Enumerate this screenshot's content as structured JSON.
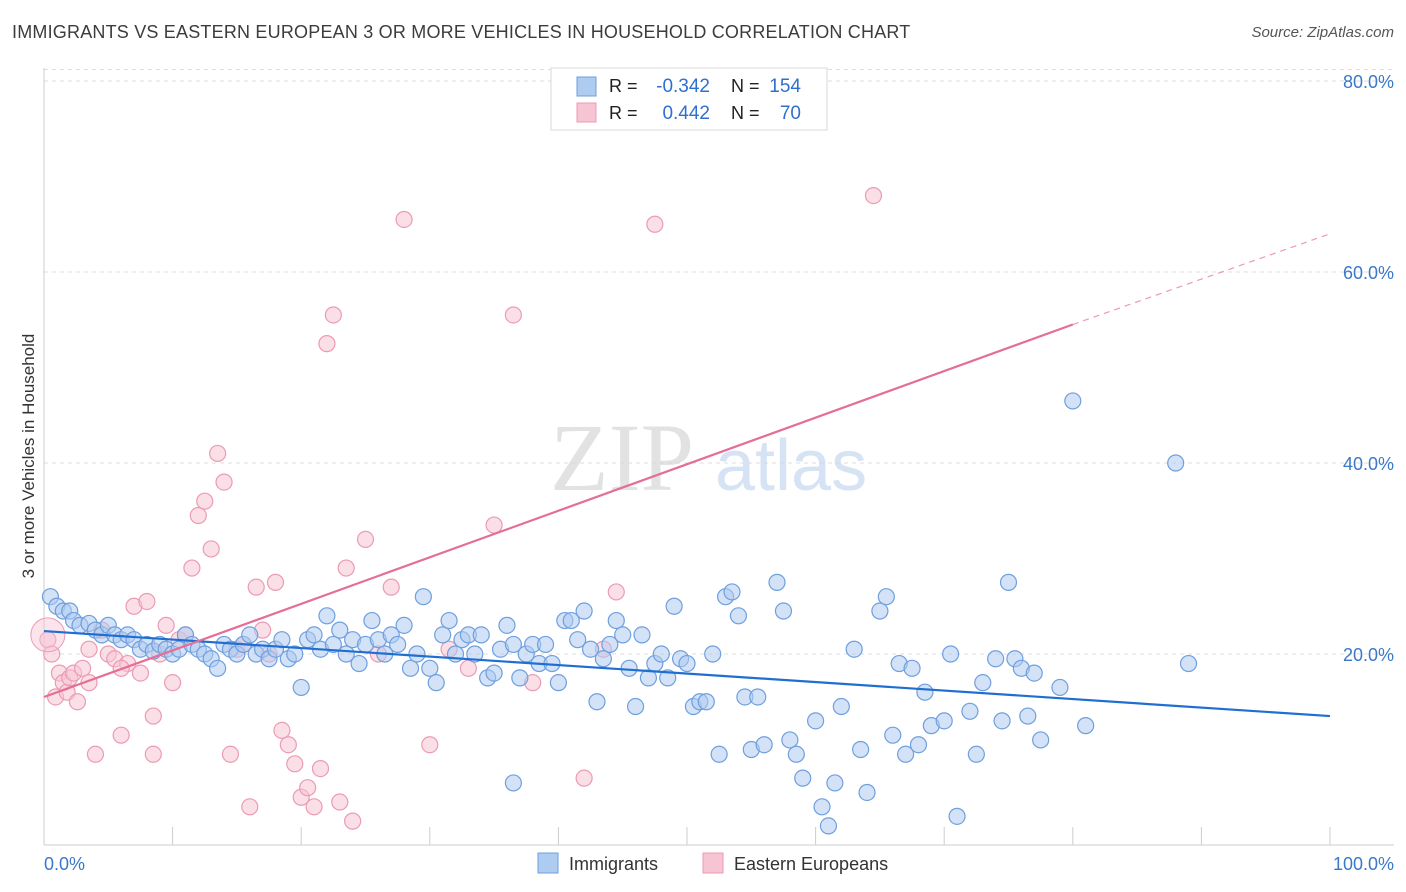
{
  "title": "IMMIGRANTS VS EASTERN EUROPEAN 3 OR MORE VEHICLES IN HOUSEHOLD CORRELATION CHART",
  "source": "Source: ZipAtlas.com",
  "watermark": {
    "zip": "ZIP",
    "atlas": "atlas"
  },
  "legend_box": {
    "rows": [
      {
        "r_label": "R =",
        "r_value": "-0.342",
        "n_label": "N =",
        "n_value": "154"
      },
      {
        "r_label": "R =",
        "r_value": "0.442",
        "n_label": "N =",
        "n_value": "70"
      }
    ]
  },
  "colors": {
    "blue_fill": "#aecbf0",
    "blue_stroke": "#6e9fde",
    "blue_line": "#1f6fd1",
    "pink_fill": "#f7c4d4",
    "pink_stroke": "#ec9ab5",
    "pink_line": "#e46e96",
    "grid": "#dddddd",
    "tick_label": "#3a78c9"
  },
  "chart_data": {
    "type": "scatter",
    "title": "IMMIGRANTS VS EASTERN EUROPEAN 3 OR MORE VEHICLES IN HOUSEHOLD CORRELATION CHART",
    "xlabel": "",
    "ylabel": "3 or more Vehicles in Household",
    "xlim": [
      0,
      100
    ],
    "ylim": [
      0,
      82
    ],
    "x_tick_labels": [
      "0.0%",
      "100.0%"
    ],
    "y_ticks": [
      20,
      40,
      60,
      80
    ],
    "y_tick_labels": [
      "20.0%",
      "40.0%",
      "60.0%",
      "80.0%"
    ],
    "grid": true,
    "legend_position": "bottom-center",
    "series": [
      {
        "name": "Immigrants",
        "r": -0.342,
        "n": 154,
        "trend": {
          "x0": 0,
          "y0": 22.4,
          "x1": 100,
          "y1": 13.5
        },
        "points": [
          [
            0.5,
            26
          ],
          [
            1,
            25
          ],
          [
            1.5,
            24.5
          ],
          [
            2,
            24.5
          ],
          [
            2.3,
            23.5
          ],
          [
            2.8,
            23
          ],
          [
            3.5,
            23.2
          ],
          [
            4,
            22.5
          ],
          [
            4.5,
            22
          ],
          [
            5,
            23
          ],
          [
            5.5,
            22
          ],
          [
            6,
            21.5
          ],
          [
            6.5,
            22
          ],
          [
            7,
            21.5
          ],
          [
            7.5,
            20.5
          ],
          [
            8,
            21
          ],
          [
            8.5,
            20.3
          ],
          [
            9,
            21
          ],
          [
            9.5,
            20.5
          ],
          [
            10,
            20
          ],
          [
            10.5,
            20.5
          ],
          [
            11,
            22
          ],
          [
            11.5,
            21
          ],
          [
            12,
            20.5
          ],
          [
            12.5,
            20
          ],
          [
            13,
            19.5
          ],
          [
            13.5,
            18.5
          ],
          [
            14,
            21
          ],
          [
            14.5,
            20.5
          ],
          [
            15,
            20
          ],
          [
            15.5,
            21
          ],
          [
            16,
            22
          ],
          [
            16.5,
            20
          ],
          [
            17,
            20.5
          ],
          [
            17.5,
            19.5
          ],
          [
            18,
            20.5
          ],
          [
            18.5,
            21.5
          ],
          [
            19,
            19.5
          ],
          [
            19.5,
            20
          ],
          [
            20,
            16.5
          ],
          [
            20.5,
            21.5
          ],
          [
            21,
            22
          ],
          [
            21.5,
            20.5
          ],
          [
            22,
            24
          ],
          [
            22.5,
            21
          ],
          [
            23,
            22.5
          ],
          [
            23.5,
            20
          ],
          [
            24,
            21.5
          ],
          [
            24.5,
            19
          ],
          [
            25,
            21
          ],
          [
            25.5,
            23.5
          ],
          [
            26,
            21.5
          ],
          [
            26.5,
            20
          ],
          [
            27,
            22
          ],
          [
            27.5,
            21
          ],
          [
            28,
            23
          ],
          [
            28.5,
            18.5
          ],
          [
            29,
            20
          ],
          [
            29.5,
            26
          ],
          [
            30,
            18.5
          ],
          [
            30.5,
            17
          ],
          [
            31,
            22
          ],
          [
            31.5,
            23.5
          ],
          [
            32,
            20
          ],
          [
            32.5,
            21.5
          ],
          [
            33,
            22
          ],
          [
            33.5,
            20
          ],
          [
            34,
            22
          ],
          [
            34.5,
            17.5
          ],
          [
            35,
            18
          ],
          [
            35.5,
            20.5
          ],
          [
            36,
            23
          ],
          [
            36.5,
            21
          ],
          [
            37,
            17.5
          ],
          [
            37.5,
            20
          ],
          [
            38,
            21
          ],
          [
            38.5,
            19
          ],
          [
            39,
            21
          ],
          [
            39.5,
            19
          ],
          [
            40,
            17
          ],
          [
            40.5,
            23.5
          ],
          [
            41,
            23.5
          ],
          [
            41.5,
            21.5
          ],
          [
            42,
            24.5
          ],
          [
            42.5,
            20.5
          ],
          [
            43,
            15
          ],
          [
            43.5,
            19.5
          ],
          [
            44,
            21
          ],
          [
            44.5,
            23.5
          ],
          [
            45,
            22
          ],
          [
            45.5,
            18.5
          ],
          [
            46,
            14.5
          ],
          [
            46.5,
            22
          ],
          [
            47,
            17.5
          ],
          [
            47.5,
            19
          ],
          [
            48,
            20
          ],
          [
            48.5,
            17.5
          ],
          [
            49,
            25
          ],
          [
            49.5,
            19.5
          ],
          [
            50,
            19
          ],
          [
            50.5,
            14.5
          ],
          [
            51,
            15
          ],
          [
            51.5,
            15
          ],
          [
            52,
            20
          ],
          [
            52.5,
            9.5
          ],
          [
            53,
            26
          ],
          [
            53.5,
            26.5
          ],
          [
            54,
            24
          ],
          [
            54.5,
            15.5
          ],
          [
            55,
            10
          ],
          [
            55.5,
            15.5
          ],
          [
            56,
            10.5
          ],
          [
            57,
            27.5
          ],
          [
            57.5,
            24.5
          ],
          [
            58,
            11
          ],
          [
            58.5,
            9.5
          ],
          [
            59,
            7
          ],
          [
            60,
            13
          ],
          [
            60.5,
            4
          ],
          [
            61,
            2
          ],
          [
            61.5,
            6.5
          ],
          [
            62,
            14.5
          ],
          [
            63,
            20.5
          ],
          [
            63.5,
            10
          ],
          [
            64,
            5.5
          ],
          [
            65,
            24.5
          ],
          [
            65.5,
            26
          ],
          [
            66,
            11.5
          ],
          [
            66.5,
            19
          ],
          [
            67,
            9.5
          ],
          [
            67.5,
            18.5
          ],
          [
            68,
            10.5
          ],
          [
            68.5,
            16
          ],
          [
            69,
            12.5
          ],
          [
            70,
            13
          ],
          [
            70.5,
            20
          ],
          [
            71,
            3
          ],
          [
            72,
            14
          ],
          [
            72.5,
            9.5
          ],
          [
            73,
            17
          ],
          [
            74,
            19.5
          ],
          [
            74.5,
            13
          ],
          [
            75,
            27.5
          ],
          [
            75.5,
            19.5
          ],
          [
            76,
            18.5
          ],
          [
            76.5,
            13.5
          ],
          [
            77,
            18
          ],
          [
            77.5,
            11
          ],
          [
            79,
            16.5
          ],
          [
            80,
            46.5
          ],
          [
            81,
            12.5
          ],
          [
            88,
            40
          ],
          [
            89,
            19
          ],
          [
            36.5,
            6.5
          ]
        ]
      },
      {
        "name": "Eastern Europeans",
        "r": 0.442,
        "n": 70,
        "trend": {
          "x0": 0,
          "y0": 15.5,
          "x1": 80,
          "y1": 54.5,
          "dash_to_x": 100,
          "dash_to_y": 64
        },
        "points": [
          [
            0.3,
            21.5
          ],
          [
            0.6,
            20
          ],
          [
            0.9,
            15.5
          ],
          [
            1.2,
            18
          ],
          [
            1.5,
            17
          ],
          [
            1.8,
            16
          ],
          [
            2,
            17.5
          ],
          [
            2.3,
            18
          ],
          [
            2.6,
            15
          ],
          [
            3,
            18.5
          ],
          [
            3.5,
            17
          ],
          [
            4,
            9.5
          ],
          [
            4.5,
            22.5
          ],
          [
            5,
            20
          ],
          [
            5.5,
            19.5
          ],
          [
            6,
            11.5
          ],
          [
            6.5,
            19
          ],
          [
            7,
            25
          ],
          [
            7.5,
            18
          ],
          [
            8,
            25.5
          ],
          [
            8.5,
            9.5
          ],
          [
            9,
            20
          ],
          [
            9.5,
            23
          ],
          [
            10,
            17
          ],
          [
            10.5,
            21.5
          ],
          [
            11,
            22
          ],
          [
            11.5,
            29
          ],
          [
            12,
            34.5
          ],
          [
            12.5,
            36
          ],
          [
            13,
            31
          ],
          [
            13.5,
            41
          ],
          [
            14,
            38
          ],
          [
            14.5,
            9.5
          ],
          [
            15,
            20.5
          ],
          [
            15.5,
            21
          ],
          [
            16,
            4
          ],
          [
            16.5,
            27
          ],
          [
            17,
            22.5
          ],
          [
            17.5,
            20
          ],
          [
            18,
            27.5
          ],
          [
            18.5,
            12
          ],
          [
            19,
            10.5
          ],
          [
            19.5,
            8.5
          ],
          [
            20,
            5
          ],
          [
            20.5,
            6
          ],
          [
            21,
            4
          ],
          [
            21.5,
            8
          ],
          [
            22,
            52.5
          ],
          [
            22.5,
            55.5
          ],
          [
            23,
            4.5
          ],
          [
            23.5,
            29
          ],
          [
            24,
            2.5
          ],
          [
            25,
            32
          ],
          [
            26,
            20
          ],
          [
            27,
            27
          ],
          [
            28,
            65.5
          ],
          [
            30,
            10.5
          ],
          [
            31.5,
            20.5
          ],
          [
            33,
            18.5
          ],
          [
            35,
            33.5
          ],
          [
            36.5,
            55.5
          ],
          [
            38,
            17
          ],
          [
            42,
            7
          ],
          [
            43.5,
            20.5
          ],
          [
            44.5,
            26.5
          ],
          [
            47.5,
            65
          ],
          [
            64.5,
            68
          ],
          [
            8.5,
            13.5
          ],
          [
            3.5,
            20.5
          ],
          [
            6,
            18.5
          ]
        ]
      }
    ]
  }
}
